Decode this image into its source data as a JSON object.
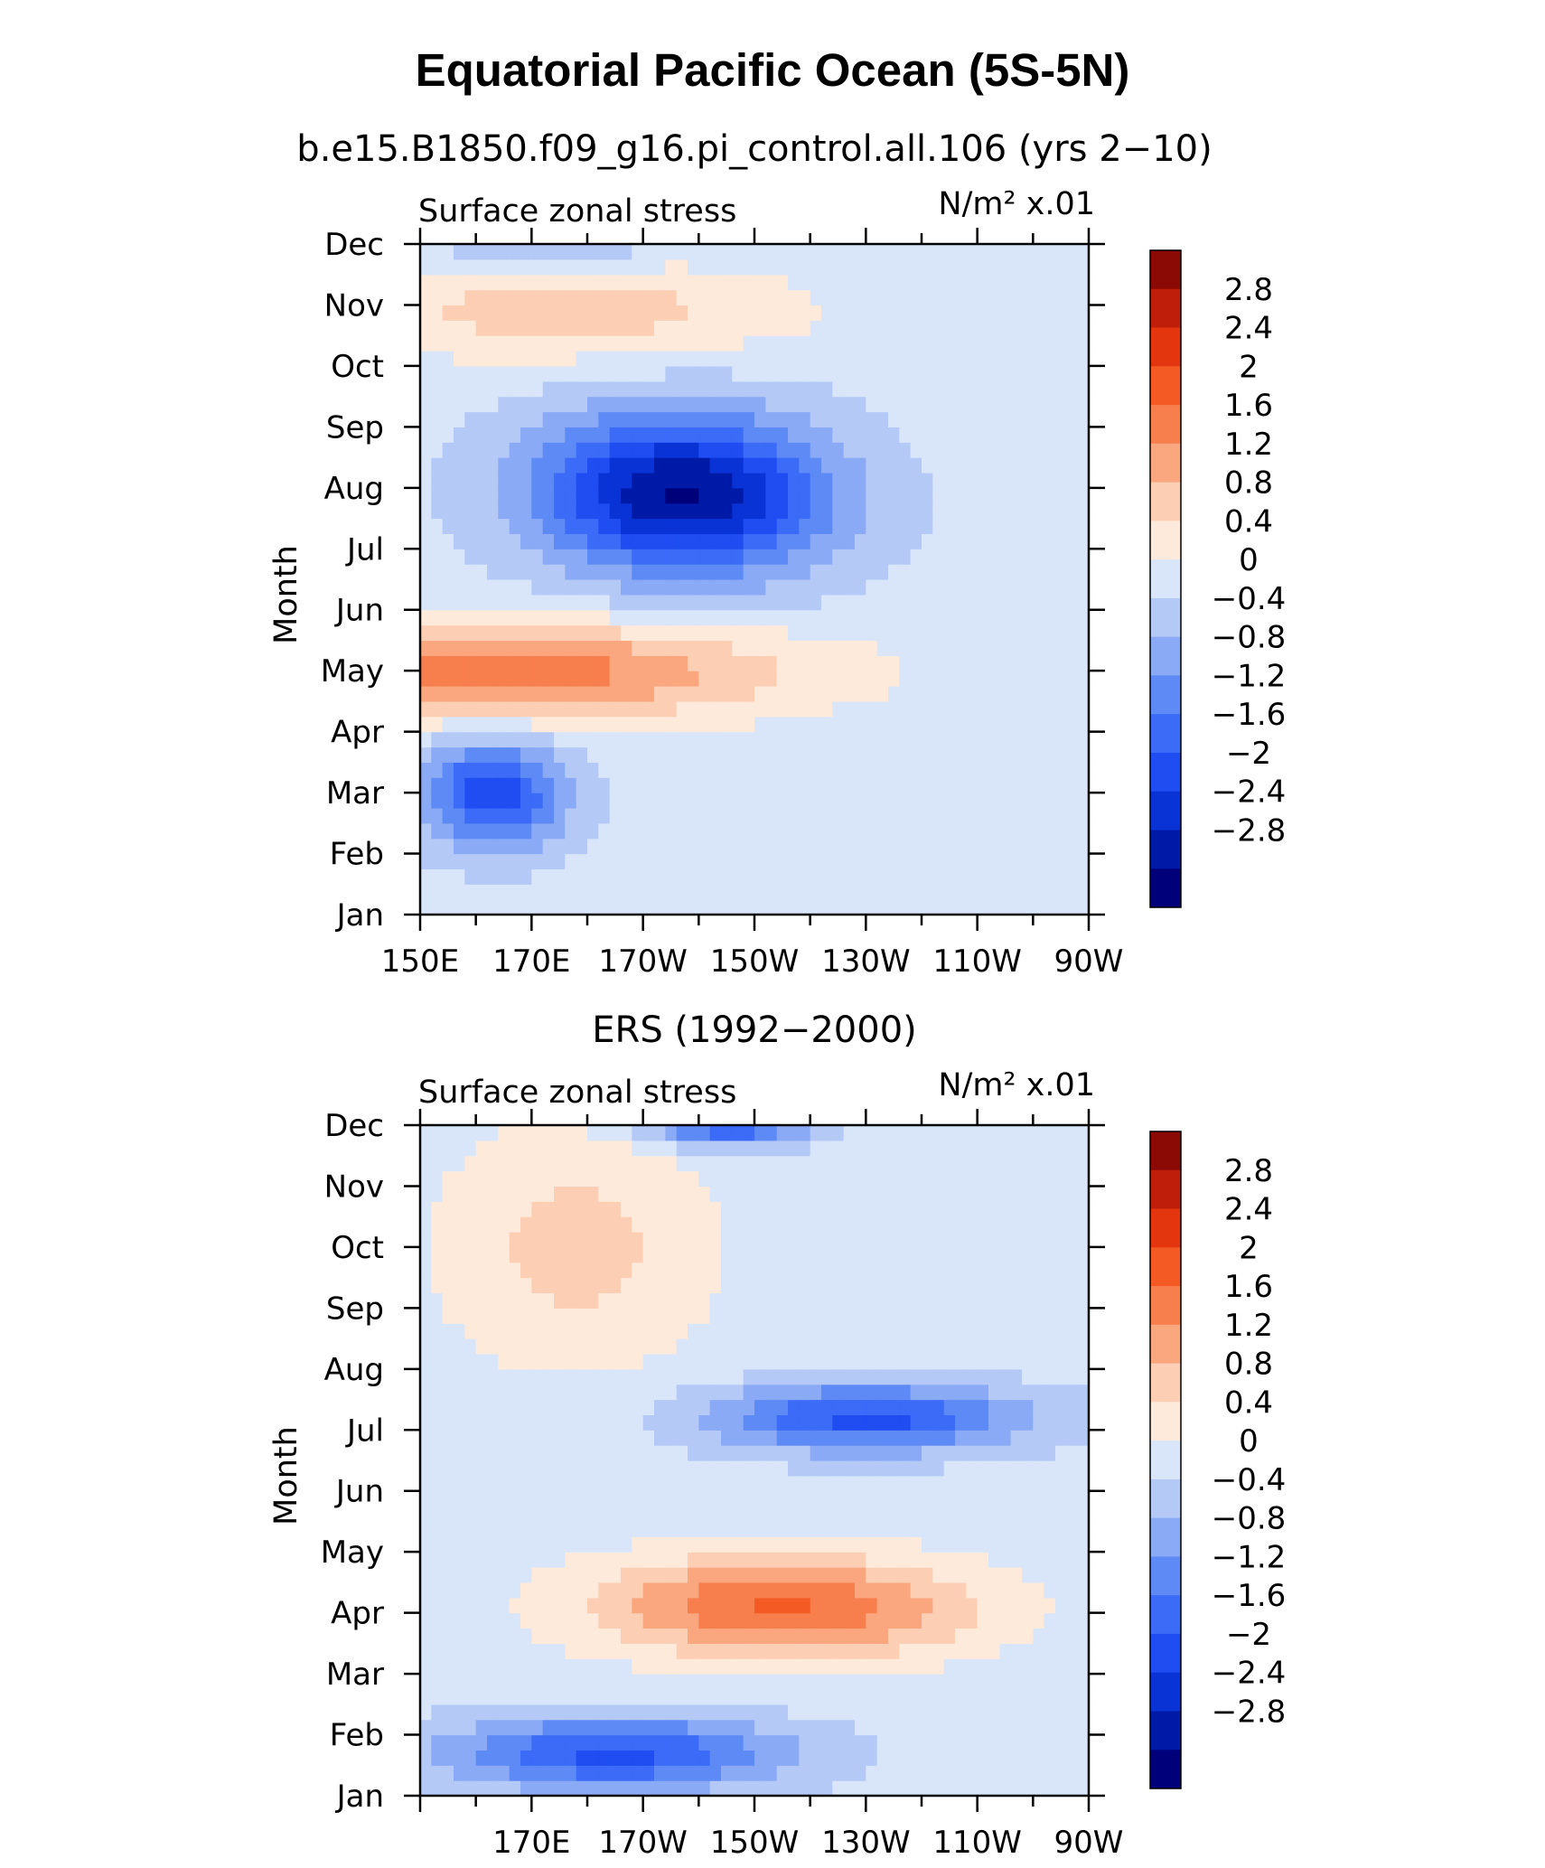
{
  "title": "Equatorial Pacific Ocean (5S-5N)",
  "colors": [
    "#00007a",
    "#001aa8",
    "#0a33d6",
    "#1f4df2",
    "#3b6bf7",
    "#5e8af5",
    "#8aaaf5",
    "#b5c9f7",
    "#d9e6fa",
    "#fdeadb",
    "#fccfb5",
    "#faa67e",
    "#f77f4d",
    "#f45a24",
    "#e3360f",
    "#be1e0a",
    "#8c0a05"
  ],
  "colorbar_labels": [
    "2.8",
    "2.4",
    "2",
    "1.6",
    "1.2",
    "0.8",
    "0.4",
    "0",
    "−0.4",
    "−0.8",
    "−1.2",
    "−1.6",
    "−2",
    "−2.4",
    "−2.8"
  ],
  "chart_data": [
    {
      "type": "heatmap",
      "subtitle": "b.e15.B1850.f09_g16.pi_control.all.106 (yrs 2−10)",
      "panel_label": "Surface zonal stress",
      "units": "N/m² x.01",
      "ylabel": "Month",
      "y_ticks": [
        "Jan",
        "Feb",
        "Mar",
        "Apr",
        "May",
        "Jun",
        "Jul",
        "Aug",
        "Sep",
        "Oct",
        "Nov",
        "Dec"
      ],
      "x_ticks": [
        "150E",
        "170E",
        "170W",
        "150W",
        "130W",
        "110W",
        "90W"
      ],
      "x_range": [
        150,
        270
      ],
      "levels": [
        -2.8,
        -2.4,
        -2,
        -1.6,
        -1.2,
        -0.8,
        -0.4,
        0,
        0.4,
        0.8,
        1.2,
        1.6,
        2,
        2.4,
        2.8
      ],
      "features": [
        {
          "lon": 197,
          "month": 6.9,
          "value": -3.0,
          "width_lon": 26,
          "width_month": 1.3,
          "tilt": 0.025
        },
        {
          "lon": 160,
          "month": 4.0,
          "value": 1.8,
          "width_lon": 55,
          "width_month": 0.8,
          "tilt": 0.032
        },
        {
          "lon": 163,
          "month": 2.0,
          "value": -2.0,
          "width_lon": 13,
          "width_month": 0.9,
          "tilt": 0.02
        },
        {
          "lon": 177,
          "month": 9.9,
          "value": 0.9,
          "width_lon": 40,
          "width_month": 0.8,
          "tilt": 0.0
        },
        {
          "lon": 173,
          "month": 11.2,
          "value": -0.9,
          "width_lon": 20,
          "width_month": 0.5,
          "tilt": 0.0
        }
      ]
    },
    {
      "type": "heatmap",
      "subtitle": "ERS (1992−2000)",
      "panel_label": "Surface zonal stress",
      "units": "N/m² x.01",
      "ylabel": "Month",
      "y_ticks": [
        "Jan",
        "Feb",
        "Mar",
        "Apr",
        "May",
        "Jun",
        "Jul",
        "Aug",
        "Sep",
        "Oct",
        "Nov",
        "Dec"
      ],
      "x_ticks": [
        "170E",
        "170W",
        "150W",
        "130W",
        "110W",
        "90W"
      ],
      "x_range": [
        150,
        270
      ],
      "levels": [
        -2.8,
        -2.4,
        -2,
        -1.6,
        -1.2,
        -0.8,
        -0.4,
        0,
        0.4,
        0.8,
        1.2,
        1.6,
        2,
        2.4,
        2.8
      ],
      "features": [
        {
          "lon": 230,
          "month": 6.2,
          "value": -1.9,
          "width_lon": 28,
          "width_month": 0.55,
          "tilt": 0.0
        },
        {
          "lon": 215,
          "month": 3.1,
          "value": 1.9,
          "width_lon": 34,
          "width_month": 0.85,
          "tilt": 0.03
        },
        {
          "lon": 185,
          "month": 0.7,
          "value": -1.9,
          "width_lon": 30,
          "width_month": 0.6,
          "tilt": 0.0
        },
        {
          "lon": 205,
          "month": 11.0,
          "value": -1.8,
          "width_lon": 14,
          "width_month": 0.35,
          "tilt": 0.0
        },
        {
          "lon": 178,
          "month": 9.0,
          "value": 0.8,
          "width_lon": 25,
          "width_month": 2.0,
          "tilt": 0.0
        }
      ]
    }
  ]
}
